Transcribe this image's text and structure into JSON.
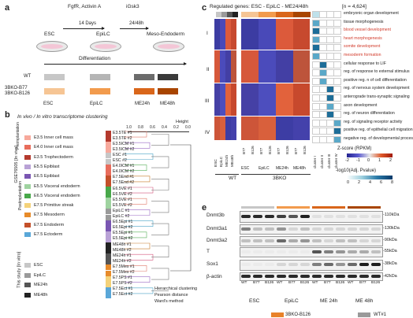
{
  "panel_a": {
    "letter": "a",
    "factors_top": "FgfR, Activin A",
    "factors_right": "iGsk3",
    "days1": "14 Days",
    "days2": "24/48h",
    "stages": [
      "ESC",
      "EpiLC",
      "Meso-Endoderm"
    ],
    "differentiation": "Differentiation",
    "row_wt": "WT",
    "row_ko": [
      "3BKO-B77",
      "3BKO-B126"
    ],
    "bottom_labels": [
      "ESC",
      "EpiLC",
      "ME24h",
      "ME48h"
    ],
    "colors": {
      "wt": [
        "#c7c7c7",
        "#b5b5b5",
        "#6b6b6b",
        "#3a3a3a"
      ],
      "ko": [
        "#f6c594",
        "#f29b4d",
        "#d9661a",
        "#a84500"
      ]
    }
  },
  "panel_b": {
    "letter": "b",
    "title": "In vivo / In vitro transcriptome clustering",
    "height_label": "Height",
    "height_ticks": [
      "1.0",
      "0.8",
      "0.6",
      "0.4",
      "0.2",
      "0.0"
    ],
    "side_label_1": "GSE76505 [In vivo]",
    "side_label_2": "This study [In vitro]",
    "preimplant_1": "Preimplantation",
    "preimplant_2": "Postimplantation",
    "legend": [
      {
        "label": "E3.5 Inner cell mass",
        "color": "#f7a99c"
      },
      {
        "label": "E4.0 Inner cell mass",
        "color": "#e86d5c"
      },
      {
        "label": "E3.5 Trophectoderm",
        "color": "#b43a2e"
      },
      {
        "label": "E5.5 Epiblast",
        "color": "#b9a2d6"
      },
      {
        "label": "E6.5 Epiblast",
        "color": "#7a56b2"
      },
      {
        "label": "E5.5 Visceral endoderm",
        "color": "#9fd3a0"
      },
      {
        "label": "E6.5 Visceral endoderm",
        "color": "#48a84a"
      },
      {
        "label": "E7.5 Primitive streak",
        "color": "#f4d27a"
      },
      {
        "label": "E7.5 Mesoderm",
        "color": "#e78b2a"
      },
      {
        "label": "E7.5 Endoderm",
        "color": "#c4502a"
      },
      {
        "label": "E7.5 Ectoderm",
        "color": "#5aa7d8"
      }
    ],
    "legend2": [
      {
        "label": "ESC",
        "color": "#c7c7c7"
      },
      {
        "label": "EpiLC",
        "color": "#9a9a9a"
      },
      {
        "label": "ME24h",
        "color": "#555555"
      },
      {
        "label": "ME48h",
        "color": "#222222"
      }
    ],
    "leaves": [
      "E3.5TE #1",
      "E3.5TE #2",
      "E3.5ICM #1",
      "E3.5ICM #2",
      "ESC #1",
      "ESC #2",
      "E4.0ICM #1",
      "E4.0ICM #2",
      "E7.5End #1",
      "E7.5End #2",
      "E6.5VE #1",
      "E6.5VE #2",
      "E5.5VE #1",
      "E5.5VE #2",
      "EpiLC #1",
      "EpiLC #2",
      "E6.5Epi #1",
      "E6.5Epi #2",
      "E5.5Epi #1",
      "E5.5Epi #2",
      "ME48h #1",
      "ME48h #2",
      "ME24h #1",
      "ME24h #2",
      "E7.5Mes #1",
      "E7.5Mes #2",
      "E7.5PS #1",
      "E7.5PS #2",
      "E7.5Ect #1",
      "E7.5Ect #2"
    ],
    "leaf_colors": [
      "#b43a2e",
      "#b43a2e",
      "#f7a99c",
      "#f7a99c",
      "#c7c7c7",
      "#c7c7c7",
      "#e86d5c",
      "#e86d5c",
      "#c4502a",
      "#c4502a",
      "#48a84a",
      "#48a84a",
      "#9fd3a0",
      "#9fd3a0",
      "#9a9a9a",
      "#9a9a9a",
      "#7a56b2",
      "#7a56b2",
      "#b9a2d6",
      "#b9a2d6",
      "#222222",
      "#222222",
      "#555555",
      "#555555",
      "#e78b2a",
      "#e78b2a",
      "#f4d27a",
      "#f4d27a",
      "#5aa7d8",
      "#5aa7d8"
    ],
    "method": [
      "Hierarchical clustering",
      "Pearson distance",
      "Ward's method"
    ]
  },
  "panel_c": {
    "letter": "c",
    "title": "Regulated genes: ESC - EpiLC - ME24/48h",
    "n_label": "[n = 4,624]",
    "clusters": [
      "I",
      "II",
      "III",
      "IV"
    ],
    "go_terms": [
      {
        "text": "embryonic organ development",
        "red": false
      },
      {
        "text": "tissue morphogenesis",
        "red": false
      },
      {
        "text": "blood vessel development",
        "red": true
      },
      {
        "text": "heart morphogenesis",
        "red": true
      },
      {
        "text": "somite development",
        "red": true
      },
      {
        "text": "mesoderm formation",
        "red": true
      },
      {
        "text": "cellular response to LIF",
        "red": false
      },
      {
        "text": "reg. of response to external stimulus",
        "red": false
      },
      {
        "text": "positive reg. n of cell differentiation",
        "red": false
      },
      {
        "text": "reg. of nervous system development",
        "red": false
      },
      {
        "text": "anterograde trans-synaptic signaling",
        "red": false
      },
      {
        "text": "axon development",
        "red": false
      },
      {
        "text": "reg. of neuron differentiation",
        "red": false
      },
      {
        "text": "reg. of signaling receptor activity",
        "red": false
      },
      {
        "text": "positive reg. of epithelial cell migration",
        "red": false
      },
      {
        "text": "negative reg. of developmental process",
        "red": false
      }
    ],
    "cluster_cols": [
      "cluster I",
      "cluster II",
      "cluster III",
      "cluster IV"
    ],
    "wt_cols": [
      "ESC",
      "EpiLC",
      "ME24h",
      "ME48h"
    ],
    "ko_cols": [
      "B77",
      "B126",
      "B77",
      "B126",
      "B77",
      "B126",
      "B77",
      "B126"
    ],
    "ko_groups": [
      "ESC",
      "EpiLC",
      "ME24h",
      "ME48h"
    ],
    "group_wt": "WT",
    "group_ko": "3BKO",
    "zscore_label": "Z-score (RPKM)",
    "zscore_ticks": [
      "-2",
      "-1",
      "0",
      "1",
      "2"
    ],
    "pval_label": "-log10(Adj. Pvalue)",
    "pval_ticks": [
      "0",
      "2",
      "4",
      "6",
      "8"
    ]
  },
  "panel_e": {
    "letter": "e",
    "proteins": [
      "Dnmt3b",
      "Dnmt3a1",
      "Dnmt3a2",
      "T",
      "Sox1",
      "β-actin"
    ],
    "kda": [
      "-110kDa",
      "-130kDa",
      "-90kDa",
      "-55kDa",
      "-38kDa",
      "-42kDa"
    ],
    "lane_labels": [
      "WT",
      "B77",
      "B126",
      "WT",
      "B77",
      "B126",
      "WT",
      "B77",
      "B126",
      "WT",
      "B77",
      "B126"
    ],
    "groups": [
      "ESC",
      "EpiLC",
      "ME 24h",
      "ME 48h"
    ],
    "legend": [
      {
        "label": "3BKO-B126",
        "color": "#e8822a"
      },
      {
        "label": "WT#1",
        "color": "#9a9a9a"
      }
    ]
  }
}
